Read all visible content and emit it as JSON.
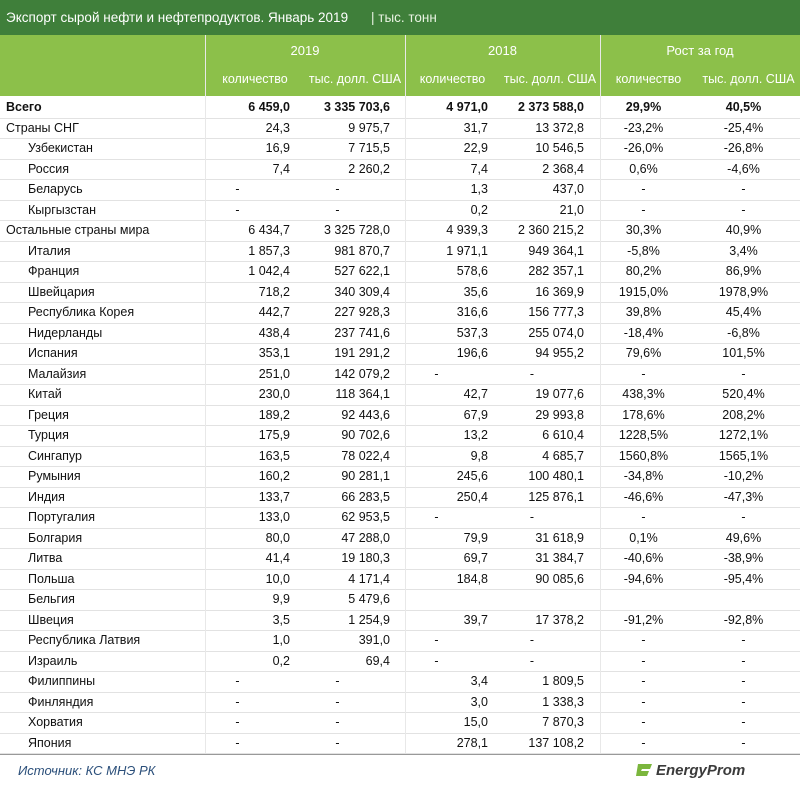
{
  "header": {
    "title": "Экспорт сырой нефти и нефтепродуктов. Январь 2019",
    "unit": "| тыс. тонн"
  },
  "columns": {
    "years": [
      "2019",
      "2018",
      "Рост за год"
    ],
    "subheaders": [
      "количество",
      "тыс. долл. США",
      "количество",
      "тыс. долл. США",
      "количество",
      "тыс. долл. США"
    ]
  },
  "table": {
    "total": {
      "label": "Всего",
      "cells": [
        "6 459,0",
        "3 335 703,6",
        "4 971,0",
        "2 373 588,0",
        "29,9%",
        "40,5%"
      ]
    },
    "groups": [
      {
        "label": "Страны СНГ",
        "cells": [
          "24,3",
          "9 975,7",
          "31,7",
          "13 372,8",
          "-23,2%",
          "-25,4%"
        ],
        "countries": [
          {
            "label": "Узбекистан",
            "cells": [
              "16,9",
              "7 715,5",
              "22,9",
              "10 546,5",
              "-26,0%",
              "-26,8%"
            ]
          },
          {
            "label": "Россия",
            "cells": [
              "7,4",
              "2 260,2",
              "7,4",
              "2 368,4",
              "0,6%",
              "-4,6%"
            ]
          },
          {
            "label": "Беларусь",
            "cells": [
              "-",
              "-",
              "1,3",
              "437,0",
              "-",
              "-"
            ]
          },
          {
            "label": "Кыргызстан",
            "cells": [
              "-",
              "-",
              "0,2",
              "21,0",
              "-",
              "-"
            ]
          }
        ]
      },
      {
        "label": "Остальные страны мира",
        "cells": [
          "6 434,7",
          "3 325 728,0",
          "4 939,3",
          "2 360 215,2",
          "30,3%",
          "40,9%"
        ],
        "countries": [
          {
            "label": "Италия",
            "cells": [
              "1 857,3",
              "981 870,7",
              "1 971,1",
              "949 364,1",
              "-5,8%",
              "3,4%"
            ]
          },
          {
            "label": "Франция",
            "cells": [
              "1 042,4",
              "527 622,1",
              "578,6",
              "282 357,1",
              "80,2%",
              "86,9%"
            ]
          },
          {
            "label": "Швейцария",
            "cells": [
              "718,2",
              "340 309,4",
              "35,6",
              "16 369,9",
              "1915,0%",
              "1978,9%"
            ]
          },
          {
            "label": "Республика Корея",
            "cells": [
              "442,7",
              "227 928,3",
              "316,6",
              "156 777,3",
              "39,8%",
              "45,4%"
            ]
          },
          {
            "label": "Нидерланды",
            "cells": [
              "438,4",
              "237 741,6",
              "537,3",
              "255 074,0",
              "-18,4%",
              "-6,8%"
            ]
          },
          {
            "label": "Испания",
            "cells": [
              "353,1",
              "191 291,2",
              "196,6",
              "94 955,2",
              "79,6%",
              "101,5%"
            ]
          },
          {
            "label": "Малайзия",
            "cells": [
              "251,0",
              "142 079,2",
              "-",
              "-",
              "-",
              "-"
            ]
          },
          {
            "label": "Китай",
            "cells": [
              "230,0",
              "118 364,1",
              "42,7",
              "19 077,6",
              "438,3%",
              "520,4%"
            ]
          },
          {
            "label": "Греция",
            "cells": [
              "189,2",
              "92 443,6",
              "67,9",
              "29 993,8",
              "178,6%",
              "208,2%"
            ]
          },
          {
            "label": "Турция",
            "cells": [
              "175,9",
              "90 702,6",
              "13,2",
              "6 610,4",
              "1228,5%",
              "1272,1%"
            ]
          },
          {
            "label": "Сингапур",
            "cells": [
              "163,5",
              "78 022,4",
              "9,8",
              "4 685,7",
              "1560,8%",
              "1565,1%"
            ]
          },
          {
            "label": "Румыния",
            "cells": [
              "160,2",
              "90 281,1",
              "245,6",
              "100 480,1",
              "-34,8%",
              "-10,2%"
            ]
          },
          {
            "label": "Индия",
            "cells": [
              "133,7",
              "66 283,5",
              "250,4",
              "125 876,1",
              "-46,6%",
              "-47,3%"
            ]
          },
          {
            "label": "Португалия",
            "cells": [
              "133,0",
              "62 953,5",
              "-",
              "-",
              "-",
              "-"
            ]
          },
          {
            "label": "Болгария",
            "cells": [
              "80,0",
              "47 288,0",
              "79,9",
              "31 618,9",
              "0,1%",
              "49,6%"
            ]
          },
          {
            "label": "Литва",
            "cells": [
              "41,4",
              "19 180,3",
              "69,7",
              "31 384,7",
              "-40,6%",
              "-38,9%"
            ]
          },
          {
            "label": "Польша",
            "cells": [
              "10,0",
              "4 171,4",
              "184,8",
              "90 085,6",
              "-94,6%",
              "-95,4%"
            ]
          },
          {
            "label": "Бельгия",
            "cells": [
              "9,9",
              "5 479,6",
              null,
              null,
              null,
              null
            ]
          },
          {
            "label": "Швеция",
            "cells": [
              "3,5",
              "1 254,9",
              "39,7",
              "17 378,2",
              "-91,2%",
              "-92,8%"
            ]
          },
          {
            "label": "Республика Латвия",
            "cells": [
              "1,0",
              "391,0",
              "-",
              "-",
              "-",
              "-"
            ]
          },
          {
            "label": "Израиль",
            "cells": [
              "0,2",
              "69,4",
              "-",
              "-",
              "-",
              "-"
            ]
          },
          {
            "label": "Филиппины",
            "cells": [
              "-",
              "-",
              "3,4",
              "1 809,5",
              "-",
              "-"
            ]
          },
          {
            "label": "Финляндия",
            "cells": [
              "-",
              "-",
              "3,0",
              "1 338,3",
              "-",
              "-"
            ]
          },
          {
            "label": "Хорватия",
            "cells": [
              "-",
              "-",
              "15,0",
              "7 870,3",
              "-",
              "-"
            ]
          },
          {
            "label": "Япония",
            "cells": [
              "-",
              "-",
              "278,1",
              "137 108,2",
              "-",
              "-"
            ]
          }
        ]
      }
    ]
  },
  "footer": {
    "source": "Источник: КС МНЭ РК",
    "logo": "EnergyProm"
  }
}
